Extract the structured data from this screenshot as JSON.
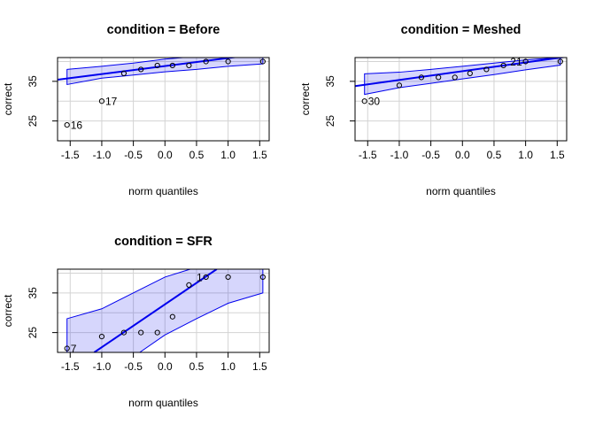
{
  "chart_data": [
    {
      "type": "scatter",
      "title": "condition = Before",
      "xlabel": "norm quantiles",
      "ylabel": "correct",
      "xticks": [
        "-1.5",
        "-1.0",
        "-0.5",
        "0.0",
        "0.5",
        "1.0",
        "1.5"
      ],
      "yticks": [
        "25",
        "35"
      ],
      "xlim": [
        -1.7,
        1.65
      ],
      "ylim": [
        20,
        41
      ],
      "grid": true,
      "points": [
        {
          "x": -1.55,
          "y": 24,
          "label": "16"
        },
        {
          "x": -1.0,
          "y": 30,
          "label": "17"
        },
        {
          "x": -0.65,
          "y": 37,
          "label": ""
        },
        {
          "x": -0.38,
          "y": 38,
          "label": ""
        },
        {
          "x": -0.12,
          "y": 39,
          "label": ""
        },
        {
          "x": 0.12,
          "y": 39,
          "label": ""
        },
        {
          "x": 0.38,
          "y": 39,
          "label": ""
        },
        {
          "x": 0.65,
          "y": 40,
          "label": ""
        },
        {
          "x": 1.0,
          "y": 40,
          "label": ""
        },
        {
          "x": 1.55,
          "y": 40,
          "label": ""
        }
      ],
      "fit_line": [
        [
          -1.7,
          35.4
        ],
        [
          1.65,
          42.2
        ]
      ],
      "band_upper": [
        [
          -1.55,
          38
        ],
        [
          -1.0,
          38.8
        ],
        [
          -0.5,
          39.6
        ],
        [
          0.0,
          40.6
        ],
        [
          0.5,
          41.3
        ],
        [
          1.0,
          42
        ],
        [
          1.55,
          42
        ]
      ],
      "band_lower": [
        [
          -1.55,
          34.2
        ],
        [
          -1.0,
          35.8
        ],
        [
          -0.5,
          36.6
        ],
        [
          0.0,
          37.4
        ],
        [
          0.5,
          38
        ],
        [
          1.0,
          38.8
        ],
        [
          1.55,
          39.4
        ]
      ]
    },
    {
      "type": "scatter",
      "title": "condition = Meshed",
      "xlabel": "norm quantiles",
      "ylabel": "correct",
      "xticks": [
        "-1.5",
        "-1.0",
        "-0.5",
        "0.0",
        "0.5",
        "1.0",
        "1.5"
      ],
      "yticks": [
        "25",
        "35"
      ],
      "xlim": [
        -1.7,
        1.65
      ],
      "ylim": [
        20,
        41
      ],
      "grid": true,
      "points": [
        {
          "x": -1.55,
          "y": 30,
          "label": "30"
        },
        {
          "x": -1.0,
          "y": 34,
          "label": ""
        },
        {
          "x": -0.65,
          "y": 36,
          "label": ""
        },
        {
          "x": -0.38,
          "y": 36,
          "label": ""
        },
        {
          "x": -0.12,
          "y": 36,
          "label": ""
        },
        {
          "x": 0.12,
          "y": 37,
          "label": ""
        },
        {
          "x": 0.38,
          "y": 38,
          "label": ""
        },
        {
          "x": 0.65,
          "y": 39,
          "label": ""
        },
        {
          "x": 1.0,
          "y": 40,
          "label": "21"
        },
        {
          "x": 1.55,
          "y": 40,
          "label": ""
        }
      ],
      "fit_line": [
        [
          -1.7,
          33.8
        ],
        [
          1.65,
          41.2
        ]
      ],
      "band_upper": [
        [
          -1.55,
          36.9
        ],
        [
          -1.0,
          37.3
        ],
        [
          -0.5,
          38
        ],
        [
          0.0,
          38.8
        ],
        [
          0.5,
          39.6
        ],
        [
          1.0,
          40.4
        ],
        [
          1.55,
          41
        ]
      ],
      "band_lower": [
        [
          -1.55,
          31.7
        ],
        [
          -1.0,
          33.4
        ],
        [
          -0.5,
          34.5
        ],
        [
          0.0,
          35.6
        ],
        [
          0.5,
          36.7
        ],
        [
          1.0,
          37.9
        ],
        [
          1.55,
          39.1
        ]
      ]
    },
    {
      "type": "scatter",
      "title": "condition = SFR",
      "xlabel": "norm quantiles",
      "ylabel": "correct",
      "xticks": [
        "-1.5",
        "-1.0",
        "-0.5",
        "0.0",
        "0.5",
        "1.0",
        "1.5"
      ],
      "yticks": [
        "25",
        "35"
      ],
      "xlim": [
        -1.7,
        1.65
      ],
      "ylim": [
        20,
        41
      ],
      "grid": true,
      "points": [
        {
          "x": -1.55,
          "y": 21,
          "label": "7"
        },
        {
          "x": -1.0,
          "y": 24,
          "label": ""
        },
        {
          "x": -0.65,
          "y": 25,
          "label": ""
        },
        {
          "x": -0.38,
          "y": 25,
          "label": ""
        },
        {
          "x": -0.12,
          "y": 25,
          "label": ""
        },
        {
          "x": 0.12,
          "y": 29,
          "label": ""
        },
        {
          "x": 0.38,
          "y": 37,
          "label": ""
        },
        {
          "x": 0.65,
          "y": 39,
          "label": "1"
        },
        {
          "x": 1.0,
          "y": 39,
          "label": ""
        },
        {
          "x": 1.55,
          "y": 39,
          "label": ""
        }
      ],
      "fit_line": [
        [
          -1.12,
          20
        ],
        [
          0.82,
          41
        ]
      ],
      "band_upper": [
        [
          -1.55,
          28.5
        ],
        [
          -1.0,
          31
        ],
        [
          -0.5,
          35
        ],
        [
          0.0,
          39
        ],
        [
          0.4,
          41
        ],
        [
          1.55,
          41
        ]
      ],
      "band_lower": [
        [
          -1.55,
          20
        ],
        [
          -0.4,
          20
        ],
        [
          0.0,
          24.4
        ],
        [
          0.5,
          28.5
        ],
        [
          1.0,
          32.4
        ],
        [
          1.55,
          35
        ]
      ]
    }
  ]
}
